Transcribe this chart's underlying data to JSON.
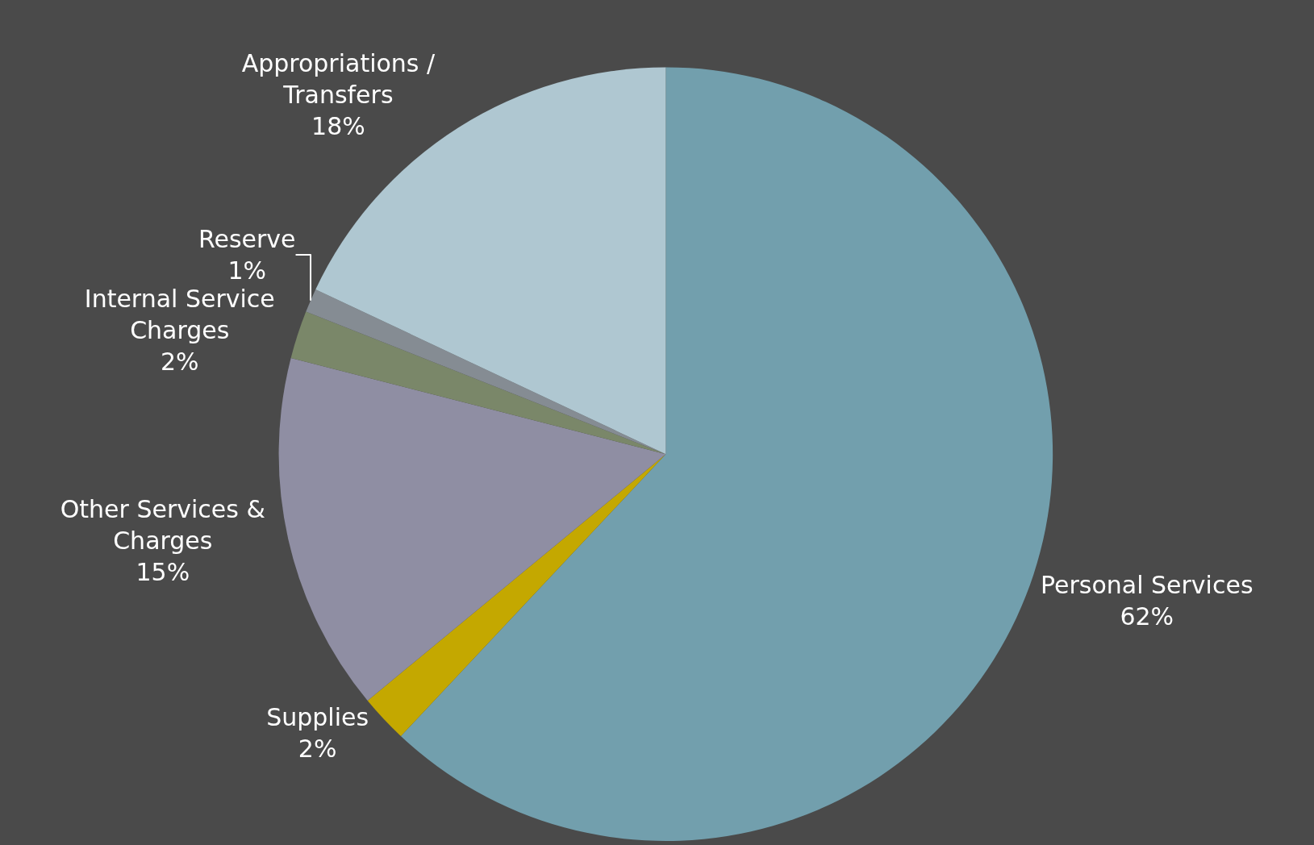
{
  "chart_data": {
    "type": "pie",
    "categories": [
      "Personal Services",
      "Supplies",
      "Other Services & Charges",
      "Internal Service Charges",
      "Reserve",
      "Appropriations / Transfers"
    ],
    "values": [
      62,
      2,
      15,
      2,
      1,
      18
    ],
    "value_labels": [
      "62%",
      "2%",
      "15%",
      "2%",
      "1%",
      "18%"
    ],
    "colors": [
      "#729fad",
      "#c4a800",
      "#8f8ea3",
      "#7a8769",
      "#858c93",
      "#afc7d1"
    ],
    "legend": false
  }
}
